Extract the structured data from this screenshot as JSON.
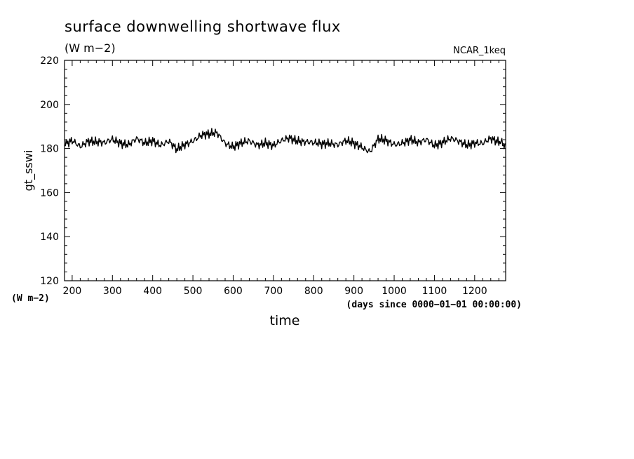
{
  "figure": {
    "title": "surface downwelling shortwave flux",
    "units": "(W m−2)",
    "run_tag": "NCAR_1keq",
    "y_unit_note": "(W m−2)",
    "x_unit_note": "(days since 0000−01−01 00:00:00)"
  },
  "chart_data": {
    "type": "line",
    "title": "surface downwelling shortwave flux",
    "xlabel": "time",
    "ylabel": "gt_sswi",
    "xlim": [
      181,
      1277
    ],
    "ylim": [
      120,
      220
    ],
    "xticks": [
      200,
      300,
      400,
      500,
      600,
      700,
      800,
      900,
      1000,
      1100,
      1200
    ],
    "yticks": [
      120,
      140,
      160,
      180,
      200,
      220
    ],
    "grid": false,
    "series": [
      {
        "color": "#000000",
        "x": [
          181,
          200,
          220,
          240,
          260,
          280,
          300,
          320,
          340,
          360,
          380,
          400,
          420,
          440,
          460,
          480,
          500,
          520,
          540,
          560,
          580,
          600,
          620,
          640,
          660,
          680,
          700,
          720,
          740,
          760,
          780,
          800,
          820,
          840,
          860,
          880,
          900,
          920,
          940,
          960,
          980,
          1000,
          1020,
          1040,
          1060,
          1080,
          1100,
          1120,
          1140,
          1160,
          1180,
          1200,
          1220,
          1240,
          1260,
          1277
        ],
        "y": [
          182,
          183,
          181,
          184,
          183,
          182,
          184,
          183,
          182,
          184,
          182,
          184,
          182,
          183,
          179,
          182,
          184,
          186,
          186,
          187,
          183,
          181,
          182,
          183,
          182,
          183,
          181,
          183,
          185,
          184,
          183,
          182,
          182,
          183,
          182,
          183,
          182,
          181,
          179,
          184,
          183,
          182,
          183,
          184,
          182,
          184,
          182,
          183,
          184,
          183,
          182,
          183,
          182,
          184,
          183,
          182
        ]
      }
    ]
  }
}
